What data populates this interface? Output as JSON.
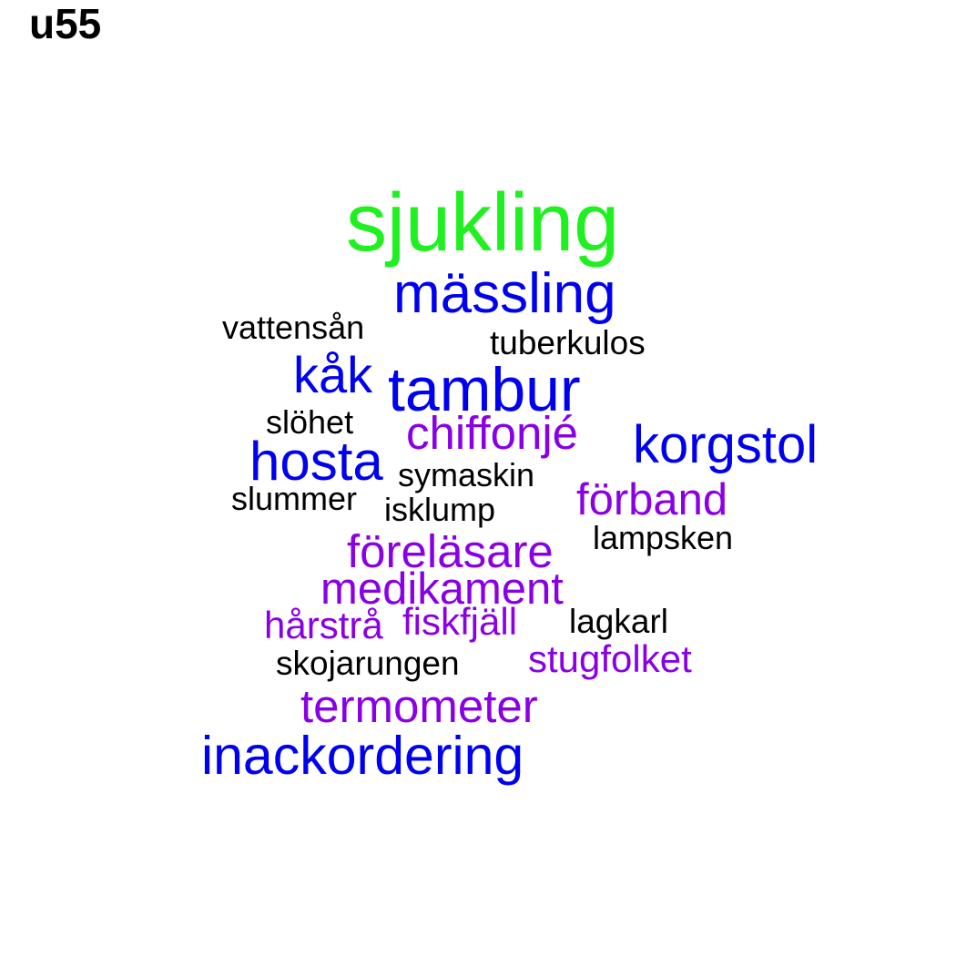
{
  "title": "u55",
  "colors": {
    "green": "#1ff01f",
    "blue": "#0000f0",
    "purple": "#8a00e6",
    "black": "#000000"
  },
  "words": {
    "sjukling": "sjukling",
    "massling": "mässling",
    "vattensan": "vattensån",
    "tuberkulos": "tuberkulos",
    "kak": "kåk",
    "tambur": "tambur",
    "slohet": "slöhet",
    "chiffonje": "chiffonjé",
    "korgstol": "korgstol",
    "hosta": "hosta",
    "symaskin": "symaskin",
    "slummer": "slummer",
    "isklump": "isklump",
    "forband": "förband",
    "forelasare": "föreläsare",
    "lampsken": "lampsken",
    "medikament": "medikament",
    "harstra": "hårstrå",
    "fiskfjall": "fiskfjäll",
    "lagkarl": "lagkarl",
    "stugfolket": "stugfolket",
    "skojarungen": "skojarungen",
    "termometer": "termometer",
    "inackordering": "inackordering"
  }
}
